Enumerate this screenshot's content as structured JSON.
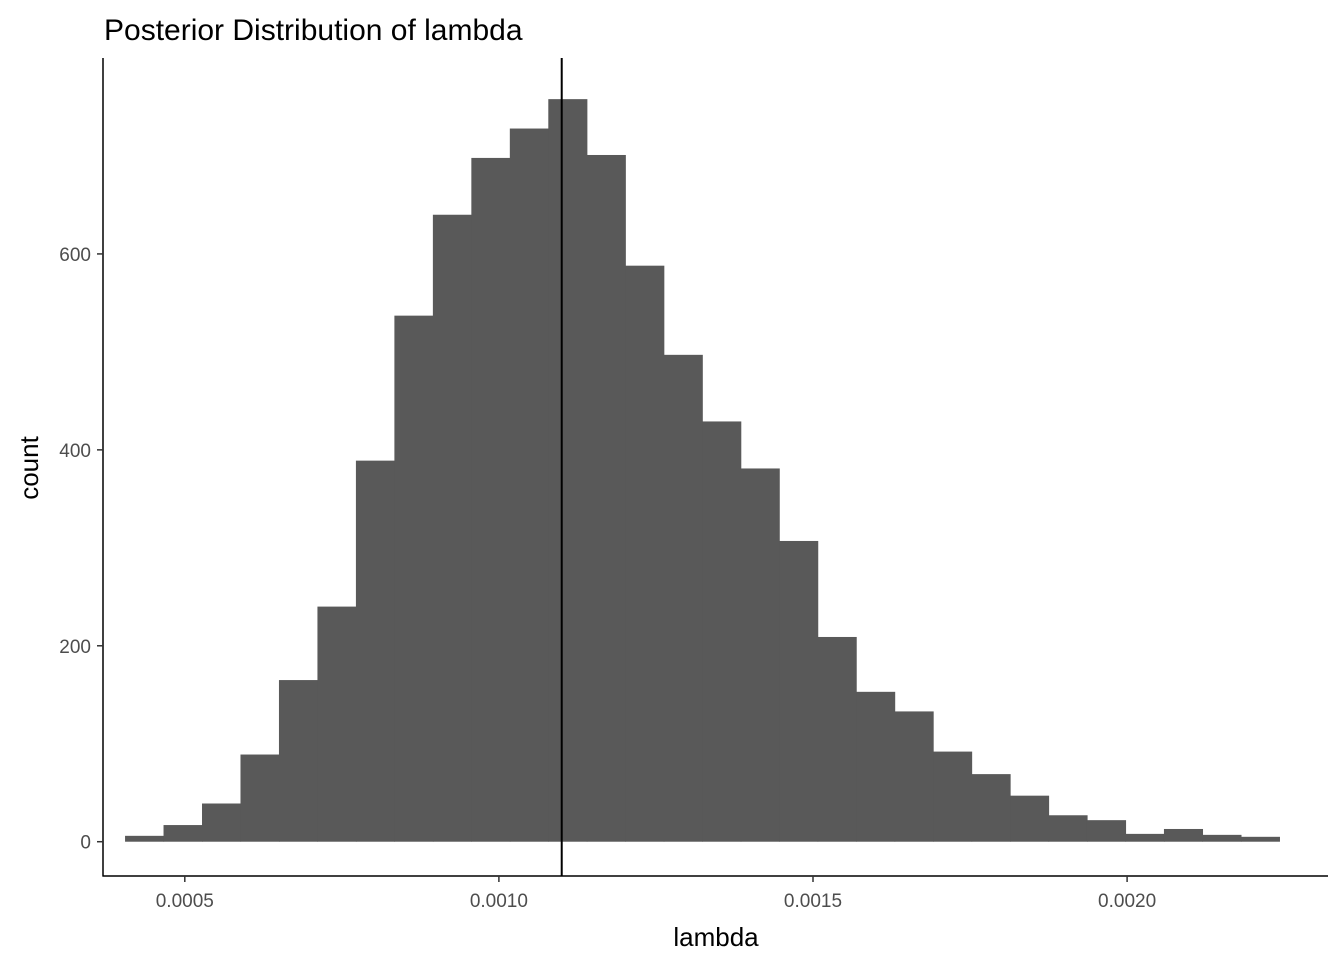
{
  "chart_data": {
    "type": "bar",
    "title": "Posterior Distribution of lambda",
    "xlabel": "lambda",
    "ylabel": "count",
    "xlim": [
      0.0003698,
      0.0023198
    ],
    "ylim": [
      -35,
      800
    ],
    "x_ticks": [
      0.0005,
      0.001,
      0.0015,
      0.002
    ],
    "x_tick_labels": [
      "0.0005",
      "0.0010",
      "0.0015",
      "0.0020"
    ],
    "y_ticks": [
      0,
      200,
      400,
      600
    ],
    "y_tick_labels": [
      "0",
      "200",
      "400",
      "600"
    ],
    "bin_width": 6.125e-05,
    "bin_start": 0.0004049,
    "counts": [
      6,
      17,
      39,
      89,
      165,
      240,
      389,
      537,
      640,
      698,
      728,
      758,
      701,
      588,
      497,
      429,
      381,
      307,
      209,
      153,
      133,
      92,
      69,
      47,
      27,
      22,
      8,
      13,
      7,
      5
    ],
    "vline": 0.0011,
    "colors": {
      "bar": "#595959",
      "vline": "#000000",
      "axis": "#000000",
      "tick_label": "#4d4d4d"
    },
    "grid": false,
    "legend": "none"
  }
}
